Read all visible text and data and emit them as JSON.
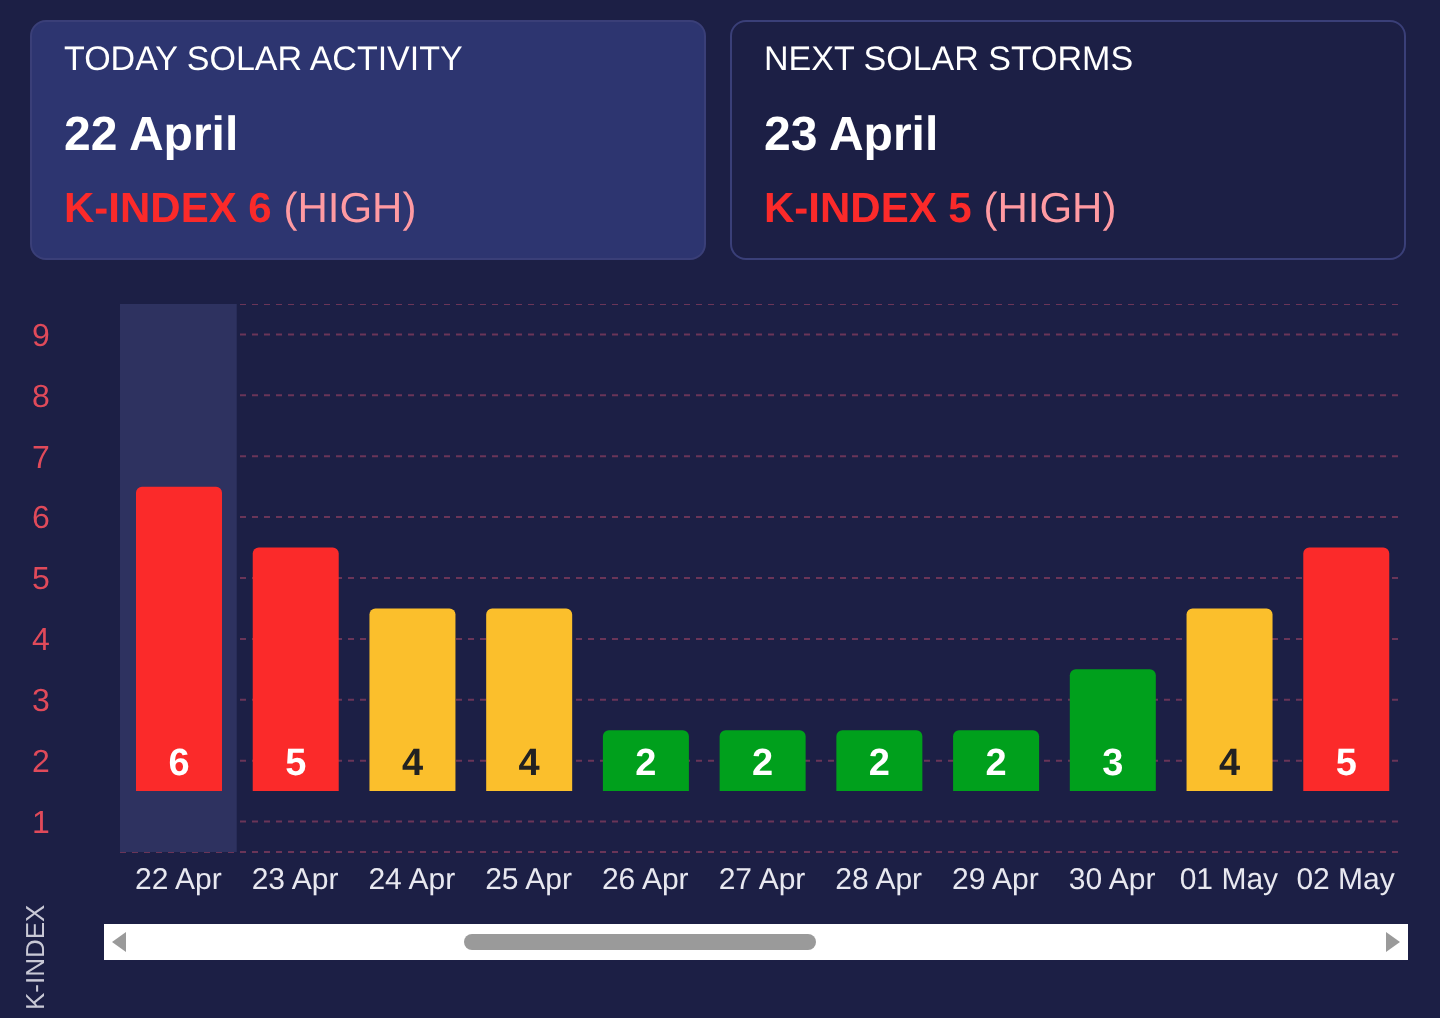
{
  "chart_data": {
    "type": "bar",
    "annotations": [
      "TODAY SOLAR ACTIVITY",
      "22 April",
      "K-INDEX 6",
      "(HIGH)",
      "NEXT SOLAR STORMS",
      "23 April",
      "K-INDEX 5",
      "(HIGH)"
    ],
    "ylabel": "K-INDEX",
    "categories": [
      "22 Apr",
      "23 Apr",
      "24 Apr",
      "25 Apr",
      "26 Apr",
      "27 Apr",
      "28 Apr",
      "29 Apr",
      "30 Apr",
      "01 May",
      "02 May"
    ],
    "base": [
      1.5,
      1.5,
      1.5,
      1.5,
      1.5,
      1.5,
      1.5,
      1.5,
      1.5,
      1.5,
      1.5
    ],
    "values": [
      5,
      4,
      3,
      3,
      1,
      1,
      1,
      1,
      2,
      3,
      4
    ],
    "value_labels": [
      "6",
      "5",
      "4",
      "4",
      "2",
      "2",
      "2",
      "2",
      "3",
      "4",
      "5"
    ],
    "colors": [
      "#fb2a2a",
      "#fb2a2a",
      "#fbbf2c",
      "#fbbf2c",
      "#00a01c",
      "#00a01c",
      "#00a01c",
      "#00a01c",
      "#00a01c",
      "#fbbf2c",
      "#fb2a2a"
    ],
    "ylim": [
      0.5,
      9.5
    ],
    "yticks": [
      1,
      2,
      3,
      4,
      5,
      6,
      7,
      8,
      9
    ],
    "grid": "y",
    "bands": [
      {
        "axis": "x",
        "from": "22 Apr",
        "to": "22 Apr",
        "color": "#2e3260"
      }
    ]
  }
}
